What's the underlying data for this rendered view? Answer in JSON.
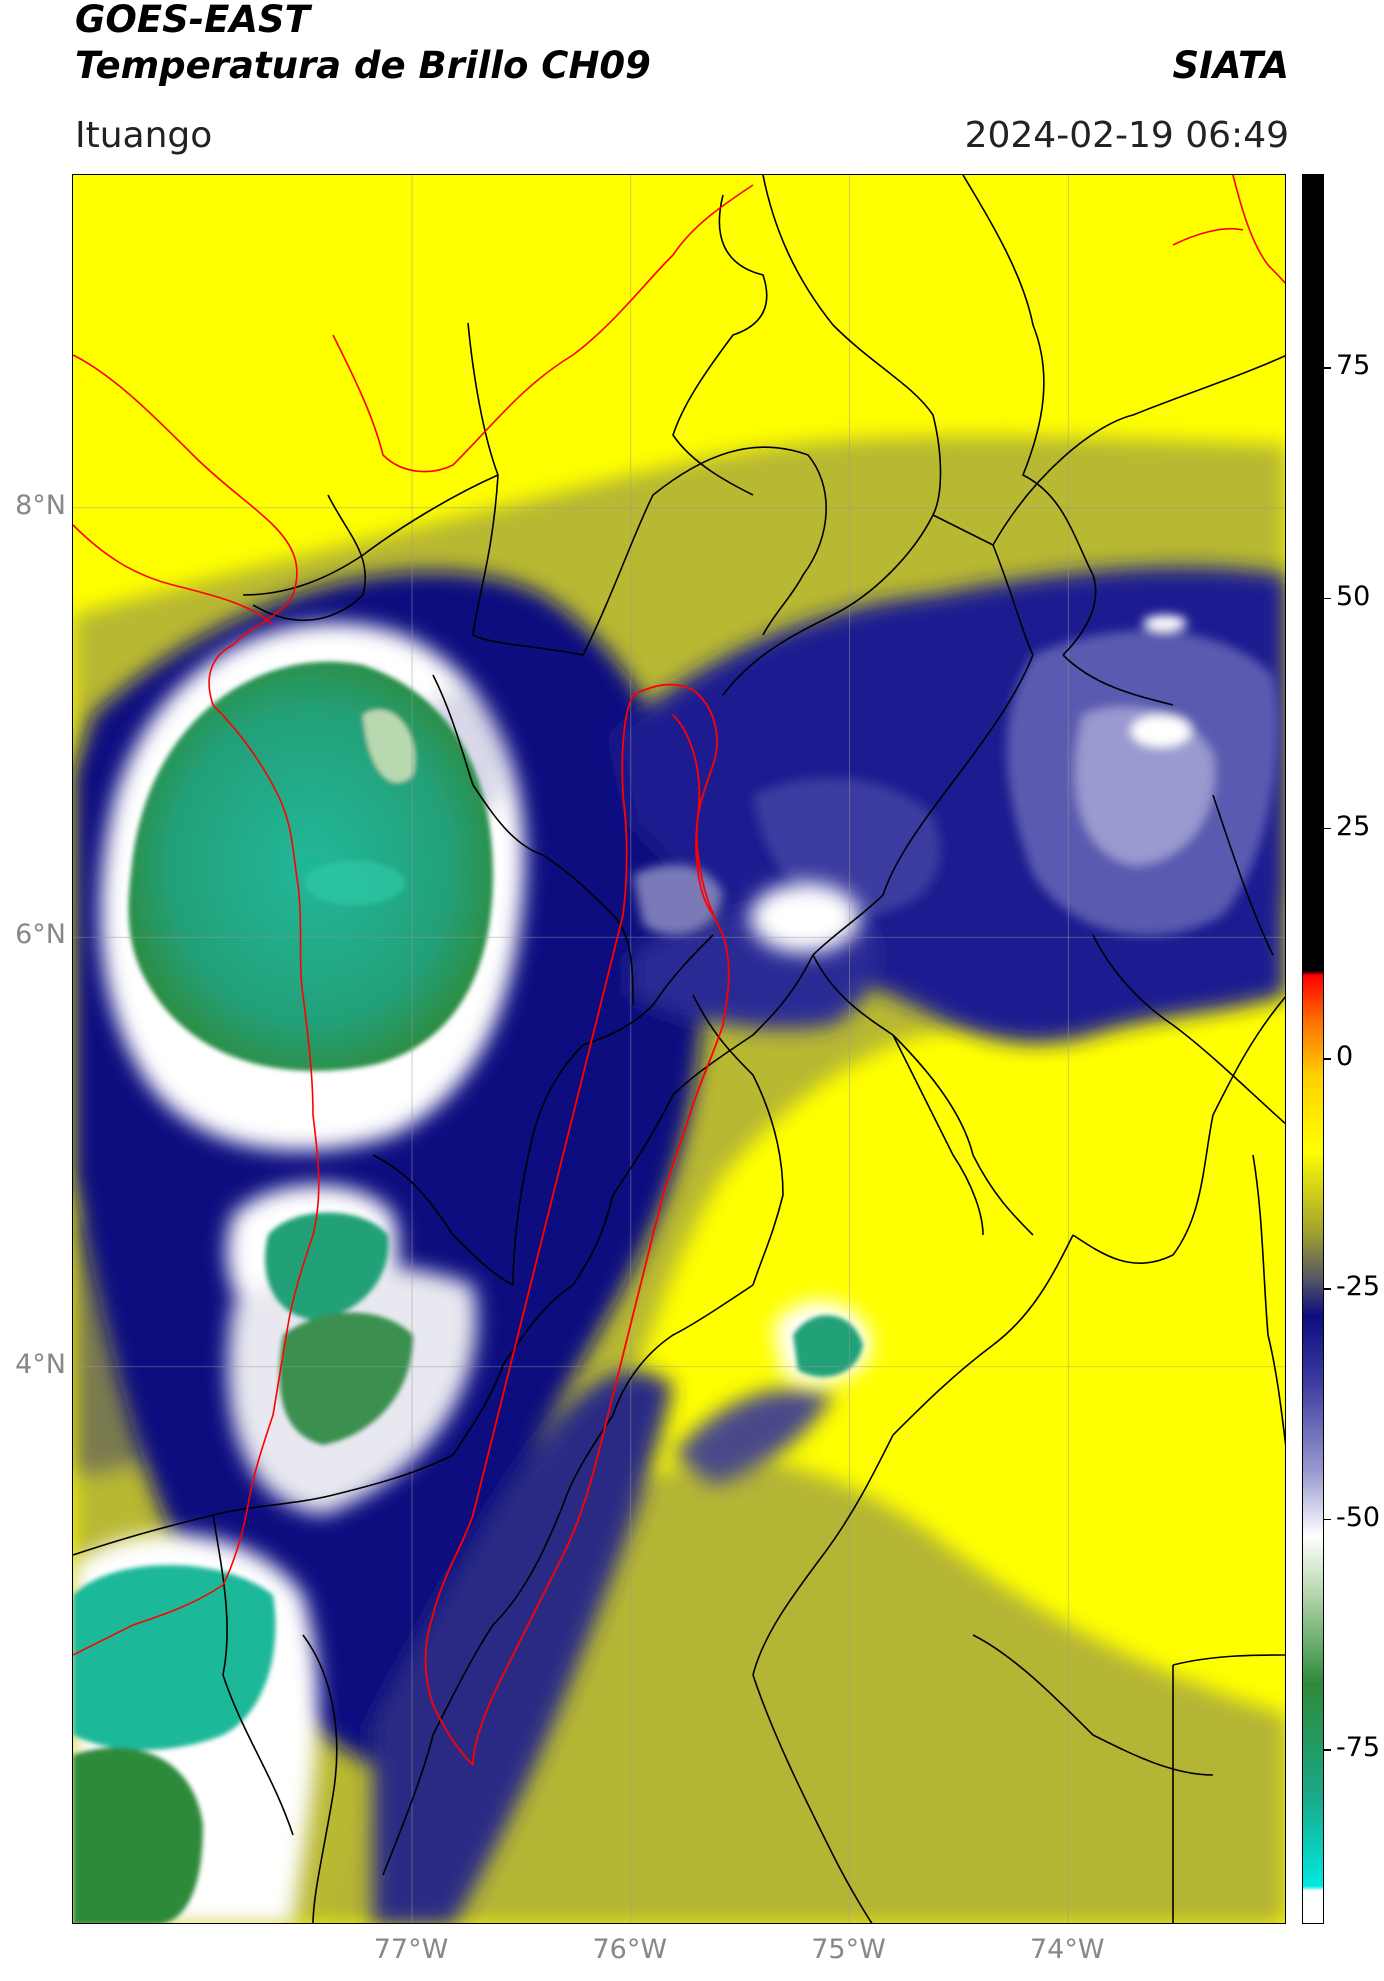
{
  "header": {
    "title_line1": "GOES-EAST",
    "title_line2": "Temperatura de Brillo CH09",
    "brand": "SIATA",
    "location": "Ituango",
    "datetime": "2024-02-19 06:49"
  },
  "axes": {
    "lat_ticks": [
      {
        "label": "8°N",
        "value": 8
      },
      {
        "label": "6°N",
        "value": 6
      },
      {
        "label": "4°N",
        "value": 4
      }
    ],
    "lon_ticks": [
      {
        "label": "77°W",
        "value": -77
      },
      {
        "label": "76°W",
        "value": -76
      },
      {
        "label": "75°W",
        "value": -75
      },
      {
        "label": "74°W",
        "value": -74
      }
    ],
    "lat_range": [
      1.4,
      9.55
    ],
    "lon_range": [
      -78.55,
      -73.0
    ]
  },
  "colorbar": {
    "ticks": [
      {
        "label": "75",
        "value": 75
      },
      {
        "label": "50",
        "value": 50
      },
      {
        "label": "25",
        "value": 25
      },
      {
        "label": "0",
        "value": 0
      },
      {
        "label": "-25",
        "value": -25
      },
      {
        "label": "-50",
        "value": -50
      },
      {
        "label": "-75",
        "value": -75
      }
    ],
    "range": [
      -94,
      96
    ],
    "stops": [
      {
        "value": -94,
        "color": "#ffffff"
      },
      {
        "value": -90.5,
        "color": "#ffffff"
      },
      {
        "value": -90,
        "color": "#00e8e0"
      },
      {
        "value": -80,
        "color": "#1aa886"
      },
      {
        "value": -68,
        "color": "#2e8a3a"
      },
      {
        "value": -58,
        "color": "#b8d8b0"
      },
      {
        "value": -52,
        "color": "#ffffff"
      },
      {
        "value": -45,
        "color": "#9a9ad0"
      },
      {
        "value": -35,
        "color": "#3a3aa0"
      },
      {
        "value": -28,
        "color": "#0d0d80"
      },
      {
        "value": -24,
        "color": "#555565"
      },
      {
        "value": -19,
        "color": "#a0a030"
      },
      {
        "value": -10,
        "color": "#ffff00"
      },
      {
        "value": -2,
        "color": "#ffd000"
      },
      {
        "value": 4,
        "color": "#ff7000"
      },
      {
        "value": 9,
        "color": "#ff0000"
      },
      {
        "value": 9.5,
        "color": "#000000"
      },
      {
        "value": 96,
        "color": "#000000"
      }
    ]
  },
  "colors": {
    "warm_background": "#ffff00",
    "mid": "#b8b830",
    "cold_blue": "#0d0d80",
    "cloud_white": "#ffffff",
    "cold_green": "#1aa886",
    "ituango_outline": "#ff0000",
    "borders": "#000000"
  }
}
